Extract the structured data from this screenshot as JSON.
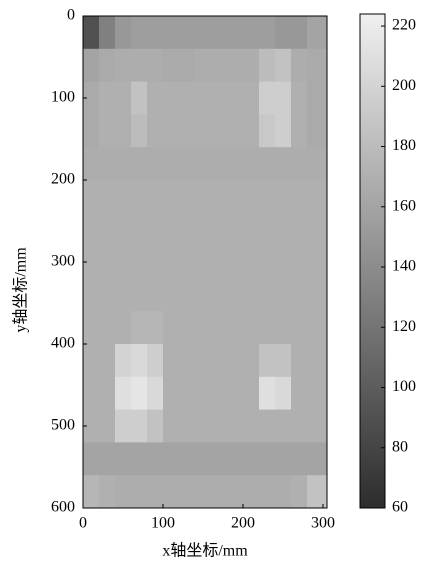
{
  "chart_data": {
    "type": "heatmap",
    "xlabel": "x轴坐标/mm",
    "ylabel": "y轴坐标/mm",
    "xlim": [
      0,
      305
    ],
    "xticks": [
      0,
      100,
      200,
      300
    ],
    "ylim": [
      0,
      600
    ],
    "yticks": [
      0,
      100,
      200,
      300,
      400,
      500,
      600
    ],
    "x_edges": [
      0,
      20,
      40,
      60,
      80,
      100,
      120,
      140,
      160,
      180,
      200,
      220,
      240,
      260,
      280,
      300
    ],
    "y_edges": [
      0,
      40,
      80,
      120,
      160,
      200,
      240,
      280,
      320,
      360,
      400,
      440,
      480,
      520,
      560,
      600
    ],
    "z": [
      [
        90,
        130,
        150,
        155,
        155,
        155,
        155,
        155,
        155,
        155,
        155,
        155,
        150,
        150,
        160
      ],
      [
        160,
        165,
        168,
        168,
        168,
        165,
        165,
        168,
        168,
        168,
        168,
        180,
        185,
        168,
        165
      ],
      [
        165,
        170,
        170,
        185,
        170,
        170,
        170,
        170,
        170,
        170,
        170,
        195,
        195,
        170,
        165
      ],
      [
        165,
        170,
        170,
        180,
        170,
        170,
        170,
        170,
        170,
        170,
        170,
        190,
        195,
        170,
        165
      ],
      [
        168,
        168,
        168,
        168,
        168,
        168,
        168,
        168,
        168,
        168,
        168,
        168,
        168,
        168,
        168
      ],
      [
        170,
        170,
        170,
        170,
        170,
        170,
        170,
        170,
        170,
        170,
        170,
        170,
        170,
        170,
        170
      ],
      [
        170,
        170,
        170,
        170,
        170,
        170,
        170,
        170,
        170,
        170,
        170,
        170,
        170,
        170,
        170
      ],
      [
        170,
        170,
        170,
        170,
        170,
        170,
        170,
        170,
        170,
        170,
        170,
        170,
        170,
        170,
        170
      ],
      [
        170,
        170,
        170,
        170,
        170,
        170,
        170,
        170,
        170,
        170,
        170,
        170,
        170,
        170,
        170
      ],
      [
        170,
        170,
        170,
        175,
        175,
        170,
        170,
        170,
        170,
        170,
        170,
        170,
        170,
        170,
        170
      ],
      [
        170,
        170,
        200,
        205,
        195,
        170,
        170,
        170,
        170,
        170,
        170,
        185,
        185,
        170,
        170
      ],
      [
        170,
        170,
        210,
        215,
        205,
        170,
        170,
        170,
        170,
        170,
        170,
        210,
        205,
        170,
        170
      ],
      [
        170,
        170,
        195,
        195,
        185,
        170,
        170,
        170,
        170,
        170,
        170,
        170,
        170,
        170,
        170
      ],
      [
        160,
        160,
        160,
        160,
        160,
        160,
        160,
        160,
        160,
        160,
        160,
        160,
        160,
        160,
        160
      ],
      [
        175,
        170,
        168,
        168,
        168,
        168,
        168,
        168,
        168,
        168,
        168,
        168,
        168,
        170,
        185
      ]
    ],
    "clim": [
      60,
      224
    ],
    "cticks": [
      60,
      80,
      100,
      120,
      140,
      160,
      180,
      200,
      220
    ],
    "colormap": "gray"
  }
}
